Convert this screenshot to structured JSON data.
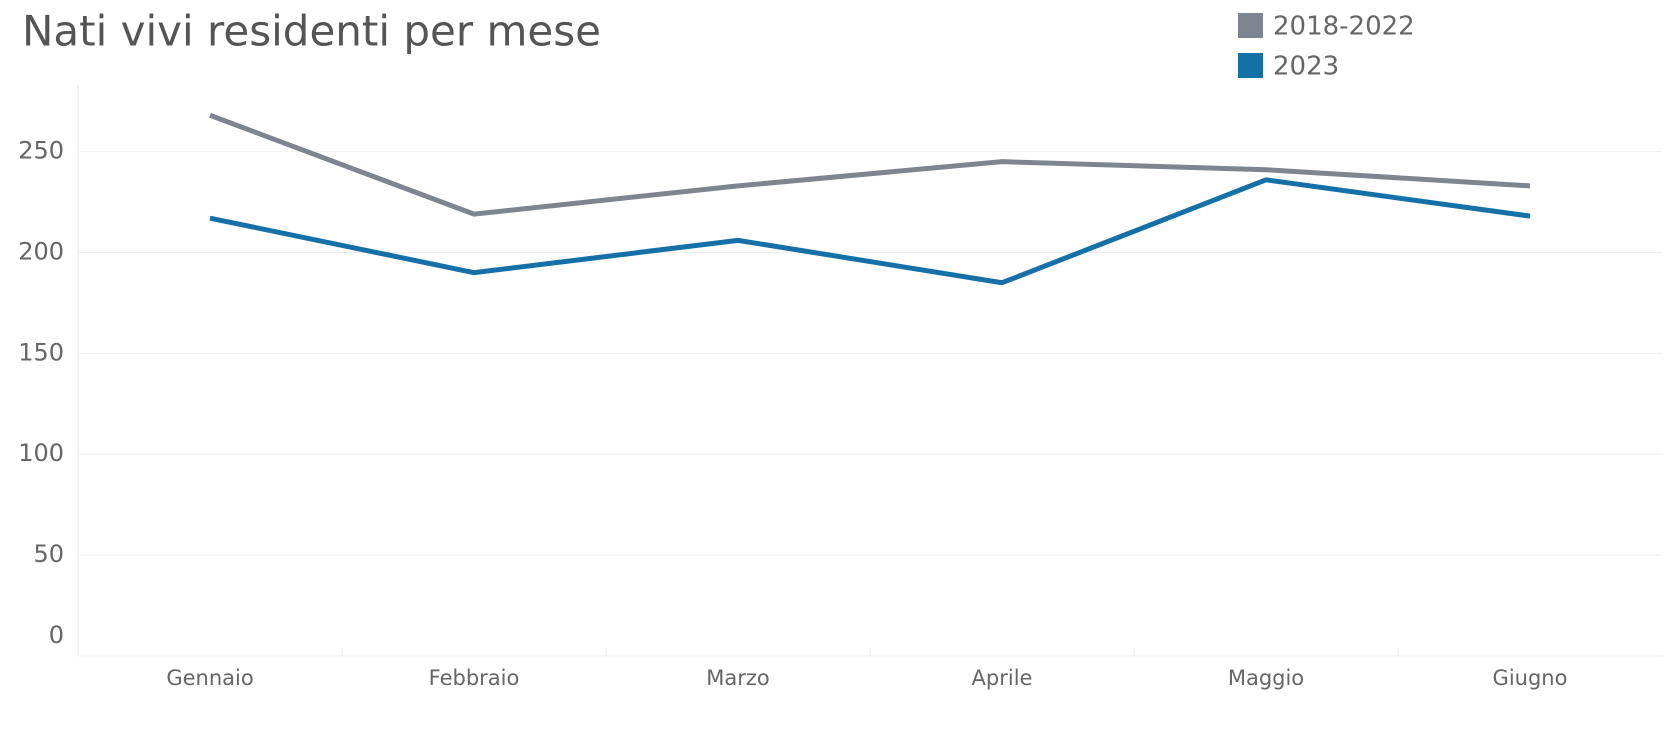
{
  "chart_data": {
    "type": "line",
    "title": "Nati vivi residenti per mese",
    "categories": [
      "Gennaio",
      "Febbraio",
      "Marzo",
      "Aprile",
      "Maggio",
      "Giugno"
    ],
    "series": [
      {
        "name": "2018-2022",
        "color": "#7f8590",
        "values": [
          268,
          219,
          233,
          245,
          241,
          233
        ]
      },
      {
        "name": "2023",
        "color": "#1670a8",
        "values": [
          217,
          190,
          206,
          185,
          236,
          218
        ]
      }
    ],
    "ylim": [
      0,
      283
    ],
    "yticks": [
      0,
      50,
      100,
      150,
      200,
      250
    ],
    "grid": true
  }
}
